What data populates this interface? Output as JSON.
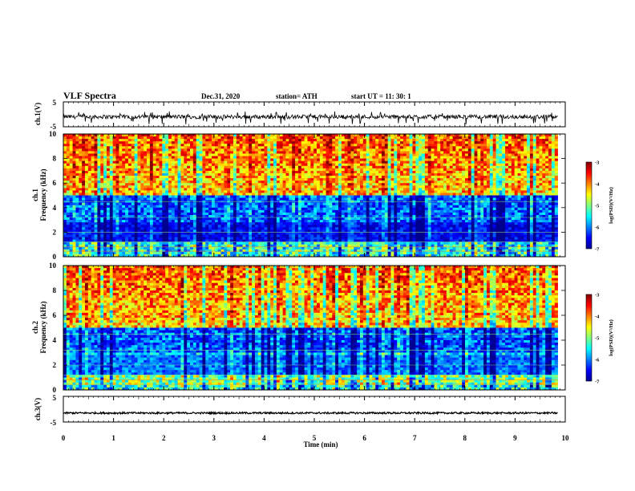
{
  "header": {
    "title": "VLF Spectra",
    "date": "Dec.31, 2020",
    "station": "station= ATH",
    "start": "start  UT =   11: 30: 1"
  },
  "chart_data": [
    {
      "type": "line",
      "panel": "ch1-waveform",
      "ylabel": "ch.1(V)",
      "ylim": [
        -5,
        5
      ],
      "yticks": [
        "5",
        "-5"
      ],
      "xlim": [
        0,
        10
      ],
      "baseline": -1.0,
      "noise_amplitude": 0.8,
      "color": "#000000"
    },
    {
      "type": "heatmap",
      "panel": "ch1-spectrogram",
      "ylabel": "ch.1\nFrequency (kHz)",
      "ylabel_lines": [
        "ch.1",
        "Frequency (kHz)"
      ],
      "ylim": [
        0,
        10
      ],
      "yticks": [
        "0",
        "2",
        "4",
        "6",
        "8",
        "10"
      ],
      "xlim": [
        0,
        9.85
      ],
      "colorbar": {
        "label": "log(PSD)(V²/Hz)",
        "range": [
          -7,
          -3
        ],
        "ticks": [
          "-3",
          "-4",
          "-5",
          "-6",
          "-7"
        ]
      }
    },
    {
      "type": "heatmap",
      "panel": "ch2-spectrogram",
      "ylabel": "ch.2\nFrequency (kHz)",
      "ylabel_lines": [
        "ch.2",
        "Frequency (kHz)"
      ],
      "ylim": [
        0,
        10
      ],
      "yticks": [
        "0",
        "2",
        "4",
        "6",
        "8",
        "10"
      ],
      "xlim": [
        0,
        9.85
      ],
      "colorbar": {
        "label": "log(PSD)(V²/Hz)",
        "range": [
          -7,
          -3
        ],
        "ticks": [
          "-3",
          "-4",
          "-5",
          "-6",
          "-7"
        ]
      }
    },
    {
      "type": "line",
      "panel": "ch3-waveform",
      "ylabel": "ch.3(V)",
      "ylim": [
        -5,
        5
      ],
      "yticks": [
        "5",
        "-5"
      ],
      "xlim": [
        0,
        10
      ],
      "baseline": -1.5,
      "noise_amplitude": 0.35,
      "color": "#000000"
    }
  ],
  "xaxis": {
    "label": "Time  (min)",
    "ticks": [
      "0",
      "1",
      "2",
      "3",
      "4",
      "5",
      "6",
      "7",
      "8",
      "9",
      "10"
    ],
    "range": [
      0,
      10
    ]
  },
  "colors": {
    "jet": [
      "#00008f",
      "#0000ff",
      "#0080ff",
      "#00ffff",
      "#80ff80",
      "#ffff00",
      "#ff8000",
      "#ff0000",
      "#800000"
    ]
  }
}
